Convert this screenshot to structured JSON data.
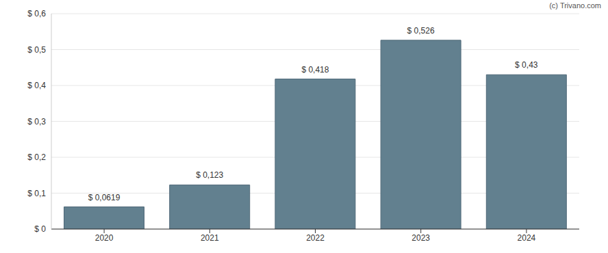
{
  "chart_data": {
    "type": "bar",
    "annotation": "(c) Trivano.com",
    "categories": [
      "2020",
      "2021",
      "2022",
      "2023",
      "2024"
    ],
    "values": [
      0.0619,
      0.123,
      0.418,
      0.526,
      0.43
    ],
    "value_labels": [
      "$ 0,0619",
      "$ 0,123",
      "$ 0,418",
      "$ 0,526",
      "$ 0,43"
    ],
    "color": "#62808f",
    "ylim": [
      0,
      0.6
    ],
    "yticks": [
      {
        "value": 0,
        "label": "$ 0"
      },
      {
        "value": 0.1,
        "label": "$ 0,1"
      },
      {
        "value": 0.2,
        "label": "$ 0,2"
      },
      {
        "value": 0.3,
        "label": "$ 0,3"
      },
      {
        "value": 0.4,
        "label": "$ 0,4"
      },
      {
        "value": 0.5,
        "label": "$ 0,5"
      },
      {
        "value": 0.6,
        "label": "$ 0,6"
      }
    ],
    "grid": true,
    "data_labels": true
  }
}
